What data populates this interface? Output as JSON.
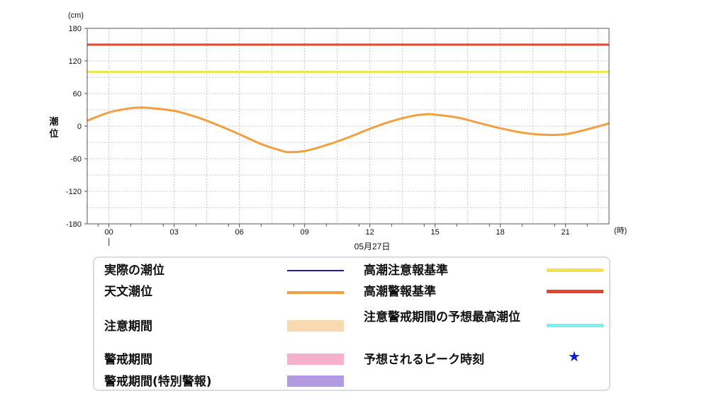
{
  "chart_data": {
    "type": "line",
    "ylabel": "潮位",
    "yunit": "(cm)",
    "xunit": "(時)",
    "date_label": "05月27日",
    "ylim": [
      -180,
      180
    ],
    "yticks": [
      "180",
      "120",
      "60",
      "0",
      "-60",
      "-120",
      "-180"
    ],
    "ytick_values": [
      180,
      120,
      60,
      0,
      -60,
      -120,
      -180
    ],
    "xlim": [
      -1,
      23
    ],
    "xticks": [
      "00",
      "03",
      "06",
      "09",
      "12",
      "15",
      "18",
      "21"
    ],
    "xtick_values": [
      0,
      3,
      6,
      9,
      12,
      15,
      18,
      21
    ],
    "grid": true,
    "series": [
      {
        "name": "天文潮位",
        "color": "#f0a040",
        "x": [
          -1,
          0,
          1,
          1.5,
          2,
          3,
          4,
          5,
          6,
          7,
          8,
          8.3,
          9,
          10,
          11,
          12,
          13,
          14,
          14.7,
          15,
          16,
          17,
          18,
          19,
          20,
          21,
          22,
          23
        ],
        "y": [
          10,
          25,
          33,
          34,
          33,
          28,
          17,
          2,
          -15,
          -33,
          -46,
          -48,
          -46,
          -35,
          -21,
          -5,
          9,
          19,
          22,
          21,
          16,
          6,
          -4,
          -12,
          -16,
          -15,
          -6,
          5
        ]
      },
      {
        "name": "高潮注意報基準",
        "color": "#f2e34a",
        "constant": 100
      },
      {
        "name": "高潮警報基準",
        "color": "#e8432e",
        "constant": 150
      }
    ]
  },
  "legend": {
    "items": [
      {
        "label": "実際の潮位",
        "color": "#2a1a9a",
        "kind": "line"
      },
      {
        "label": "天文潮位",
        "color": "#f0a040",
        "kind": "line"
      },
      {
        "label": "注意期間",
        "color": "#f8d9b0",
        "kind": "band"
      },
      {
        "label": "警戒期間",
        "color": "#f5b0cc",
        "kind": "band"
      },
      {
        "label": "警戒期間(特別警報)",
        "color": "#b29ae0",
        "kind": "band"
      },
      {
        "label": "高潮注意報基準",
        "color": "#f2e34a",
        "kind": "line"
      },
      {
        "label": "高潮警報基準",
        "color": "#e8432e",
        "kind": "line"
      },
      {
        "label": "注意警戒期間の予想最高潮位",
        "color": "#7af0f5",
        "kind": "line"
      },
      {
        "label": "予想されるピーク時刻",
        "color": "#1020d0",
        "kind": "star",
        "symbol": "★"
      }
    ]
  }
}
